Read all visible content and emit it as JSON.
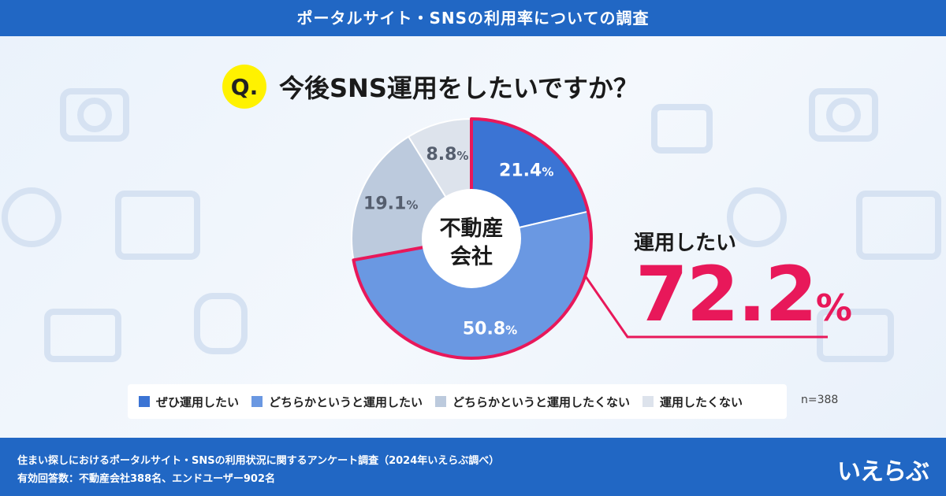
{
  "header": {
    "title": "ポータルサイト・SNSの利用率についての調査"
  },
  "question": {
    "badge": "Q.",
    "text": "今後SNS運用をしたいですか？"
  },
  "center_label": {
    "line1": "不動産",
    "line2": "会社"
  },
  "callout": {
    "label": "運用したい",
    "value": "72.2",
    "unit": "%"
  },
  "sample": "n=388",
  "footer": {
    "line1": "住まい探しにおけるポータルサイト・SNSの利用状況に関するアンケート調査（2024年いえらぶ調べ）",
    "line2": "有効回答数：不動産会社388名、エンドユーザー902名",
    "logo": "いえらぶ"
  },
  "colors": {
    "accent": "#e8185a",
    "header_bg": "#2167c4",
    "series": [
      "#3b74d4",
      "#6a98e2",
      "#bccadd",
      "#dde3ec"
    ]
  },
  "chart_data": {
    "type": "pie",
    "donut": true,
    "categories": [
      "ぜひ運用したい",
      "どちらかというと運用したい",
      "どちらかというと運用したくない",
      "運用したくない"
    ],
    "values": [
      21.4,
      50.8,
      19.1,
      8.8
    ],
    "labels": [
      "21.4",
      "50.8",
      "19.1",
      "8.8"
    ],
    "unit": "%",
    "highlight": {
      "categories": [
        "ぜひ運用したい",
        "どちらかというと運用したい"
      ],
      "total": 72.2
    },
    "legend_position": "bottom"
  }
}
